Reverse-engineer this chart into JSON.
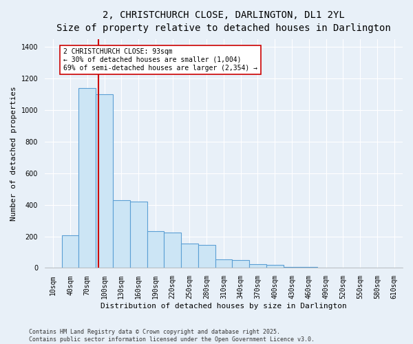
{
  "title": "2, CHRISTCHURCH CLOSE, DARLINGTON, DL1 2YL",
  "subtitle": "Size of property relative to detached houses in Darlington",
  "xlabel": "Distribution of detached houses by size in Darlington",
  "ylabel": "Number of detached properties",
  "categories": [
    "10sqm",
    "40sqm",
    "70sqm",
    "100sqm",
    "130sqm",
    "160sqm",
    "190sqm",
    "220sqm",
    "250sqm",
    "280sqm",
    "310sqm",
    "340sqm",
    "370sqm",
    "400sqm",
    "430sqm",
    "460sqm",
    "490sqm",
    "520sqm",
    "550sqm",
    "580sqm",
    "610sqm"
  ],
  "values": [
    0,
    205,
    1140,
    1100,
    430,
    420,
    235,
    225,
    155,
    145,
    55,
    50,
    25,
    20,
    5,
    5,
    0,
    0,
    0,
    0,
    0
  ],
  "bar_color": "#cce5f5",
  "bar_edge_color": "#5b9fd4",
  "vline_color": "#cc0000",
  "vline_position": 2.67,
  "annotation_text": "2 CHRISTCHURCH CLOSE: 93sqm\n← 30% of detached houses are smaller (1,004)\n69% of semi-detached houses are larger (2,354) →",
  "annotation_box_facecolor": "#ffffff",
  "annotation_box_edgecolor": "#cc0000",
  "ylim": [
    0,
    1450
  ],
  "yticks": [
    0,
    200,
    400,
    600,
    800,
    1000,
    1200,
    1400
  ],
  "bg_color": "#e8f0f8",
  "footer": "Contains HM Land Registry data © Crown copyright and database right 2025.\nContains public sector information licensed under the Open Government Licence v3.0.",
  "title_fontsize": 10,
  "xlabel_fontsize": 8,
  "ylabel_fontsize": 8,
  "tick_fontsize": 7,
  "footer_fontsize": 6,
  "annot_fontsize": 7
}
